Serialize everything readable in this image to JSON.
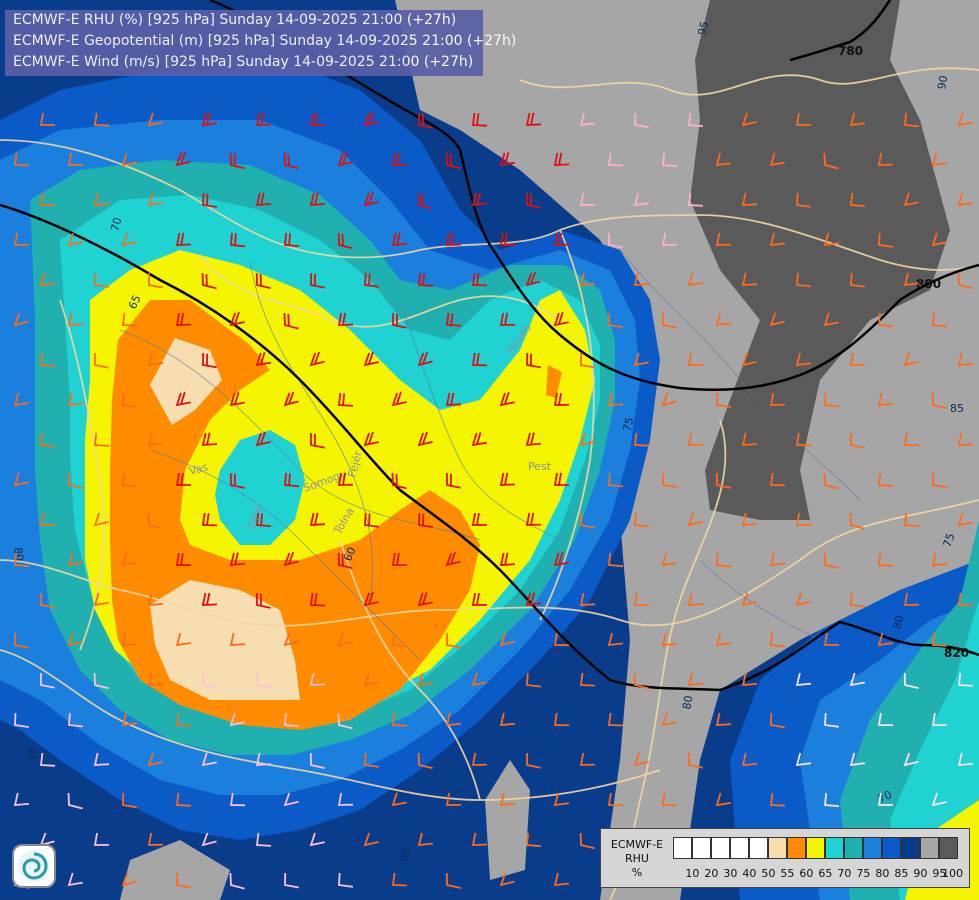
{
  "header": {
    "line1": "ECMWF-E RHU (%) [925 hPa] Sunday 14-09-2025 21:00 (+27h)",
    "line2": "ECMWF-E Geopotential (m) [925 hPa] Sunday 14-09-2025 21:00 (+27h)",
    "line3": "ECMWF-E Wind (m/s) [925 hPa] Sunday 14-09-2025 21:00 (+27h)"
  },
  "legend": {
    "title_line1": "ECMWF-E",
    "title_line2": "RHU",
    "title_line3": "%",
    "ticks": [
      "10",
      "20",
      "30",
      "40",
      "50",
      "55",
      "60",
      "65",
      "70",
      "75",
      "80",
      "85",
      "90",
      "95",
      "100"
    ],
    "colors": [
      "#ffffff",
      "#ffffff",
      "#ffffff",
      "#ffffff",
      "#ffffff",
      "#f7deb0",
      "#ff8c00",
      "#f5f500",
      "#20d2d2",
      "#20b0b0",
      "#1a7fdd",
      "#0a5ac8",
      "#0a3c8c",
      "#a6a6a6",
      "#5a5a5a"
    ]
  },
  "geopotential_labels": [
    "780",
    "800",
    "820"
  ],
  "rhu_labels": [
    "95",
    "70",
    "65",
    "80",
    "60",
    "75",
    "90",
    "85",
    "80",
    "85",
    "70",
    "75",
    "85",
    "80",
    "85"
  ],
  "place_labels": [
    "Pest",
    "Somogy",
    "Tolna",
    "Fejér",
    "Heves",
    "Vas",
    "Zala"
  ],
  "colors": {
    "rhu_100": "#5a5a5a",
    "rhu_95": "#a6a6a6",
    "rhu_90": "#0a3c8c",
    "rhu_85": "#0a5ac8",
    "rhu_80": "#1a7fdd",
    "rhu_75": "#20b0b0",
    "rhu_70": "#20d2d2",
    "rhu_65": "#f5f500",
    "rhu_60": "#ff8c00",
    "rhu_55": "#f7deb0",
    "contour": "#000000",
    "border": "#f2d6a0"
  }
}
